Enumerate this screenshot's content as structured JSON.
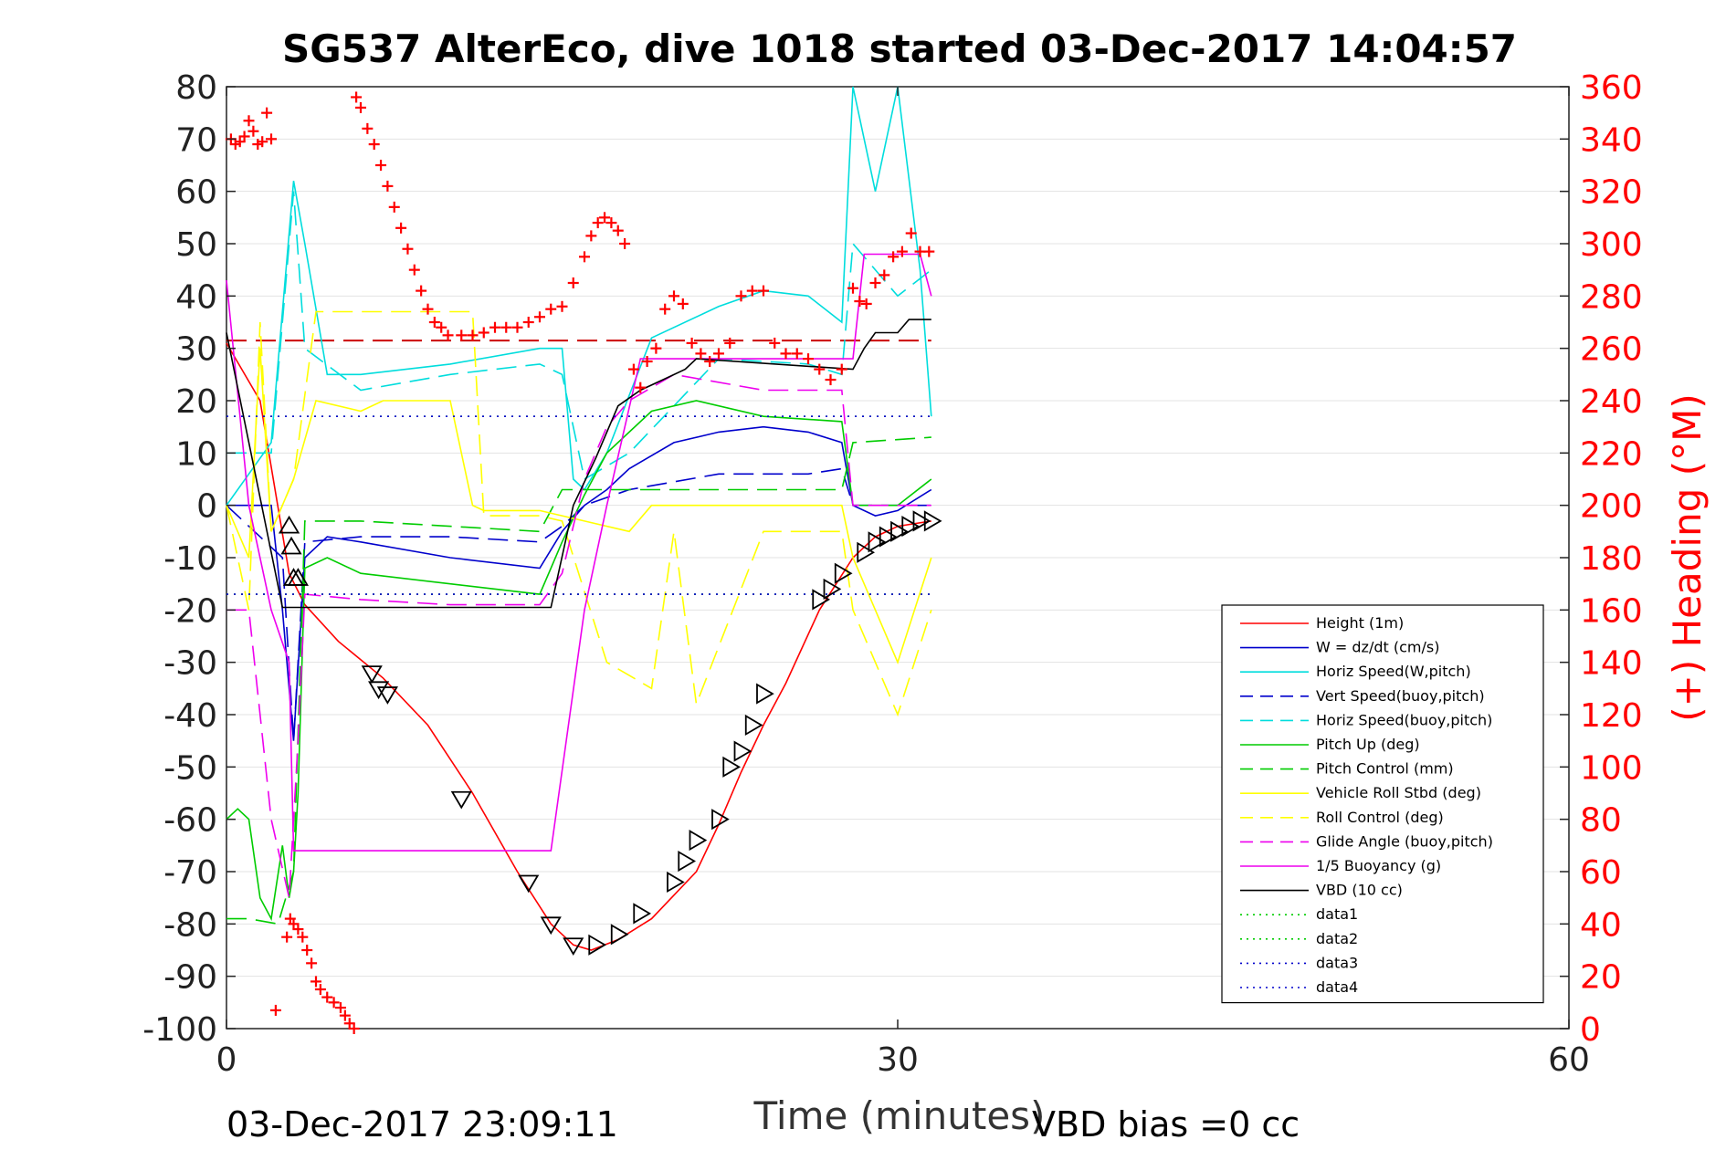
{
  "chart_data": {
    "type": "line",
    "title": "SG537 AlterEco, dive 1018 started 03-Dec-2017 14:04:57",
    "xlabel": "Time (minutes)",
    "ylabel_right": "(+) Heading (°M)",
    "xlim": [
      0,
      60
    ],
    "ylim": [
      -100,
      80
    ],
    "y2lim": [
      0,
      360
    ],
    "x_ticks": [
      0,
      30,
      60
    ],
    "y_ticks": [
      80,
      70,
      60,
      50,
      40,
      30,
      20,
      10,
      0,
      -10,
      -20,
      -30,
      -40,
      -50,
      -60,
      -70,
      -80,
      -90,
      -100
    ],
    "y2_ticks": [
      360,
      340,
      320,
      300,
      280,
      260,
      240,
      220,
      200,
      180,
      160,
      140,
      120,
      100,
      80,
      60,
      40,
      20,
      0
    ],
    "grid": true,
    "legend_position": "bottom-right",
    "footer_left": "03-Dec-2017 23:09:11",
    "footer_right": "VBD bias =0 cc",
    "series": [
      {
        "name": "Height (1m)",
        "color": "#ff0000",
        "style": "solid",
        "x": [
          0,
          1.5,
          2.8,
          3.5,
          5,
          7,
          9,
          11,
          13,
          14.5,
          15.5,
          16.3,
          17.5,
          19,
          21,
          22,
          23,
          24,
          25,
          26.5,
          28,
          29,
          30,
          31.5
        ],
        "y": [
          31,
          20,
          -13,
          -19,
          -26,
          -33,
          -42,
          -55,
          -70,
          -80,
          -84,
          -85,
          -83,
          -79,
          -70,
          -61,
          -51,
          -42,
          -34,
          -20,
          -10,
          -6,
          -4,
          -3
        ]
      },
      {
        "name": "W = dz/dt (cm/s)",
        "color": "#0000cc",
        "style": "solid",
        "x": [
          0,
          2,
          2.5,
          3,
          3.5,
          4.5,
          6,
          10,
          14,
          15,
          16,
          17,
          18,
          20,
          22,
          24,
          26,
          27.5,
          28,
          29,
          30,
          31.5
        ],
        "y": [
          0,
          0,
          -20,
          -45,
          -10,
          -6,
          -7,
          -10,
          -12,
          -5,
          0,
          3,
          7,
          12,
          14,
          15,
          14,
          12,
          0,
          -2,
          -1,
          3
        ]
      },
      {
        "name": "Horiz Speed(W,pitch)",
        "color": "#00dddd",
        "style": "solid",
        "x": [
          0,
          2,
          3,
          3.5,
          4.5,
          6,
          10,
          14,
          15,
          15.5,
          16,
          17,
          19,
          22,
          24,
          26,
          27.5,
          28,
          29,
          30,
          31,
          31.5
        ],
        "y": [
          0,
          12,
          62,
          50,
          25,
          25,
          27,
          30,
          30,
          5,
          3,
          10,
          32,
          38,
          41,
          40,
          35,
          80,
          60,
          80,
          45,
          17
        ]
      },
      {
        "name": "Vert Speed(buoy,pitch)",
        "color": "#0000cc",
        "style": "dashed",
        "x": [
          0,
          2.5,
          3,
          3.5,
          6,
          10,
          14,
          15,
          16,
          18,
          22,
          26,
          27.5,
          28,
          31.5
        ],
        "y": [
          0,
          -10,
          -45,
          -7,
          -6,
          -6,
          -7,
          -4,
          0,
          3,
          6,
          6,
          7,
          0,
          0
        ]
      },
      {
        "name": "Horiz Speed(buoy,pitch)",
        "color": "#00dddd",
        "style": "dashed",
        "x": [
          0,
          2,
          3,
          3.5,
          6,
          10,
          14,
          15,
          16,
          18,
          22,
          26,
          27.5,
          28,
          30,
          31.5
        ],
        "y": [
          10,
          10,
          60,
          30,
          22,
          25,
          27,
          25,
          5,
          10,
          28,
          27,
          25,
          50,
          40,
          45
        ]
      },
      {
        "name": "Pitch Up (deg)",
        "color": "#00cc00",
        "style": "solid",
        "x": [
          0,
          0.5,
          1,
          1.5,
          2,
          2.5,
          2.8,
          3,
          3.2,
          3.5,
          4.5,
          6,
          10,
          14,
          14.5,
          15,
          16,
          17,
          19,
          21,
          24,
          27.5,
          28,
          30,
          31.5
        ],
        "y": [
          -60,
          -58,
          -60,
          -75,
          -79,
          -65,
          -75,
          -70,
          -55,
          -12,
          -10,
          -13,
          -15,
          -17,
          -12,
          -7,
          2,
          10,
          18,
          20,
          17,
          16,
          0,
          0,
          5
        ]
      },
      {
        "name": "Pitch Control (mm)",
        "color": "#00cc00",
        "style": "dashed",
        "x": [
          0,
          1,
          2.3,
          3,
          3.5,
          6,
          14,
          15,
          16,
          17,
          27.5,
          28,
          31.5
        ],
        "y": [
          -79,
          -79,
          -80,
          -70,
          -3,
          -3,
          -5,
          3,
          3,
          3,
          3,
          12,
          13
        ]
      },
      {
        "name": "Vehicle Roll Stbd (deg)",
        "color": "#ffff00",
        "style": "solid",
        "x": [
          0,
          1,
          1.5,
          2,
          3,
          4,
          6,
          7,
          8,
          10,
          11,
          11.5,
          14,
          15,
          16,
          18,
          19,
          20,
          22,
          24,
          26,
          27.5,
          28,
          30,
          31.5
        ],
        "y": [
          0,
          -10,
          30,
          -5,
          5,
          20,
          18,
          20,
          20,
          20,
          0,
          -1,
          -1,
          -2,
          -3,
          -5,
          0,
          0,
          0,
          0,
          0,
          0,
          -10,
          -30,
          -10
        ]
      },
      {
        "name": "Roll Control (deg)",
        "color": "#ffff00",
        "style": "dashed",
        "x": [
          0,
          1,
          1.5,
          2,
          3,
          4,
          7,
          10,
          11,
          11.5,
          14,
          15,
          17,
          19,
          20,
          21,
          24,
          26,
          27.5,
          28,
          30,
          31.5
        ],
        "y": [
          0,
          -20,
          35,
          -5,
          5,
          37,
          37,
          37,
          37,
          -2,
          -2,
          -3,
          -30,
          -35,
          -5,
          -38,
          -5,
          -5,
          -5,
          -20,
          -40,
          -20
        ]
      },
      {
        "name": "Glide Angle (buoy,pitch)",
        "color": "#ee00ee",
        "style": "dashed",
        "x": [
          0,
          1,
          1.5,
          2,
          2.8,
          3.2,
          3.5,
          6,
          10,
          14,
          15,
          16,
          17,
          18,
          20,
          24,
          27.5,
          28,
          30,
          31.5
        ],
        "y": [
          -20,
          -20,
          -40,
          -60,
          -75,
          -45,
          -17,
          -18,
          -19,
          -19,
          -13,
          5,
          15,
          20,
          25,
          22,
          22,
          0,
          0,
          0
        ]
      },
      {
        "name": "1/5 Buoyancy (g)",
        "color": "#ee00ee",
        "style": "solid",
        "x": [
          0,
          1,
          2,
          2.8,
          3,
          14.5,
          16,
          17,
          18.5,
          28,
          28.5,
          29,
          29.5,
          30,
          30.5,
          31,
          31.5
        ],
        "y": [
          43,
          0,
          -20,
          -30,
          -66,
          -66,
          -20,
          0,
          28,
          28,
          48,
          48,
          48,
          48,
          48,
          48,
          40
        ]
      },
      {
        "name": "VBD (10 cc)",
        "color": "#000000",
        "style": "solid",
        "x": [
          0,
          2.5,
          14.5,
          15.5,
          16.5,
          17.5,
          18.5,
          19.5,
          20.5,
          21,
          28,
          28.5,
          29,
          30,
          30.5,
          31.5
        ],
        "y": [
          33,
          -19.5,
          -19.5,
          0,
          9,
          19,
          22,
          24,
          26,
          28,
          26,
          30,
          33,
          33,
          35.5,
          35.5
        ]
      },
      {
        "name": "data1",
        "color": "#00cc00",
        "style": "dotted",
        "x": [
          0,
          31.5
        ],
        "y": [
          17,
          17
        ]
      },
      {
        "name": "data2",
        "color": "#00cc00",
        "style": "dotted",
        "x": [
          0,
          31.5
        ],
        "y": [
          -17,
          -17
        ]
      },
      {
        "name": "data3",
        "color": "#0000cc",
        "style": "dotted",
        "x": [
          0,
          31.5
        ],
        "y": [
          17,
          17
        ]
      },
      {
        "name": "data4",
        "color": "#0000cc",
        "style": "dotted",
        "x": [
          0,
          31.5
        ],
        "y": [
          -17,
          -17
        ]
      }
    ],
    "heading_reference": {
      "color": "#cc0000",
      "style": "dashed",
      "x": [
        0,
        31.5
      ],
      "y2": [
        263,
        263
      ]
    },
    "heading_points": {
      "color": "#ff0000",
      "marker": "+",
      "x": [
        0.2,
        0.4,
        0.6,
        0.8,
        1.0,
        1.2,
        1.4,
        1.6,
        1.8,
        2.0,
        2.2,
        2.7,
        2.85,
        3.0,
        3.2,
        3.4,
        3.6,
        3.8,
        4.0,
        4.2,
        4.5,
        4.8,
        5.1,
        5.3,
        5.5,
        5.7,
        5.8,
        6.0,
        6.3,
        6.6,
        6.9,
        7.2,
        7.5,
        7.8,
        8.1,
        8.4,
        8.7,
        9.0,
        9.3,
        9.6,
        9.9,
        10.5,
        11,
        11.5,
        12,
        12.5,
        13,
        13.5,
        14,
        14.5,
        15,
        15.5,
        16,
        16.3,
        16.6,
        16.9,
        17.2,
        17.5,
        17.8,
        18.2,
        18.5,
        18.8,
        19.2,
        19.6,
        20,
        20.4,
        20.8,
        21.2,
        21.6,
        22,
        22.5,
        23,
        23.5,
        24,
        24.5,
        25,
        25.5,
        26,
        26.5,
        27,
        27.5,
        28,
        28.3,
        28.6,
        29,
        29.4,
        29.8,
        30.2,
        30.6,
        31,
        31.4
      ],
      "y2": [
        340,
        338,
        339,
        341,
        347,
        343,
        338,
        339,
        350,
        340,
        7,
        35,
        42,
        40,
        38,
        35,
        30,
        25,
        18,
        15,
        12,
        10,
        8,
        5,
        2,
        0,
        356,
        352,
        344,
        338,
        330,
        322,
        314,
        306,
        298,
        290,
        282,
        275,
        270,
        268,
        265,
        265,
        265,
        266,
        268,
        268,
        268,
        270,
        272,
        275,
        276,
        285,
        295,
        303,
        308,
        310,
        308,
        305,
        300,
        252,
        245,
        255,
        260,
        275,
        280,
        277,
        262,
        258,
        255,
        258,
        262,
        280,
        282,
        282,
        262,
        258,
        258,
        256,
        252,
        248,
        252,
        283,
        278,
        277,
        285,
        288,
        295,
        297,
        304,
        297,
        297
      ]
    },
    "depth_triangle_markers": {
      "x": [
        2.8,
        2.9,
        3.0,
        3.2,
        6.5,
        6.8,
        7.2,
        10.5,
        13.5,
        14.5,
        15.5,
        16.5,
        17.5,
        18.5,
        20,
        20.5,
        21,
        22,
        22.5,
        23,
        23.5,
        24,
        26.5,
        27,
        27.5,
        28.5,
        29,
        29.5,
        30,
        30.5,
        31,
        31.5
      ],
      "y": [
        -4,
        -8,
        -14,
        -14,
        -32,
        -35,
        -36,
        -56,
        -72,
        -80,
        -84,
        -84,
        -82,
        -78,
        -72,
        -68,
        -64,
        -60,
        -50,
        -47,
        -42,
        -36,
        -18,
        -16,
        -13,
        -9,
        -7,
        -6,
        -5,
        -4,
        -3,
        -3
      ]
    }
  }
}
